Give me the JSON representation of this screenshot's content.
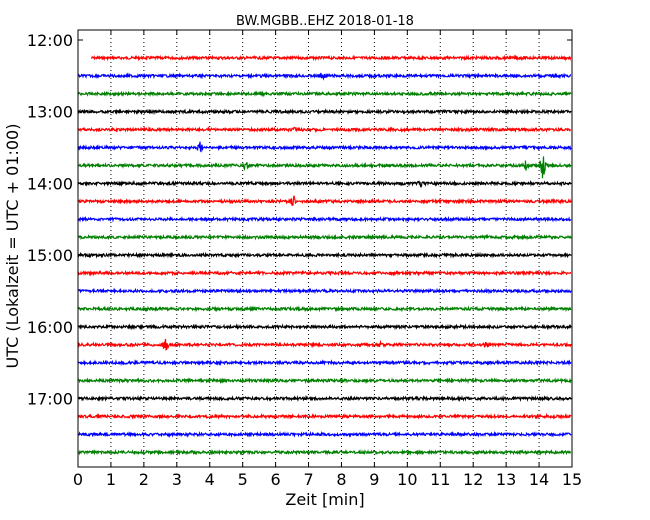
{
  "chart_data": {
    "type": "line",
    "title": "BW.MGBB..EHZ 2018-01-18",
    "xlabel": "Zeit  [min]",
    "ylabel": "UTC (Lokalzeit = UTC + 01:00)",
    "xlim": [
      0,
      15
    ],
    "x_ticks": [
      "0",
      "1",
      "2",
      "3",
      "4",
      "5",
      "6",
      "7",
      "8",
      "9",
      "10",
      "11",
      "12",
      "13",
      "14",
      "15"
    ],
    "y_ticks": [
      "12:00",
      "13:00",
      "14:00",
      "15:00",
      "16:00",
      "17:00"
    ],
    "grid": "vertical dotted",
    "colors": [
      "#ff0000",
      "#0000ff",
      "#008000",
      "#000000"
    ],
    "traces": [
      {
        "time": "12:15",
        "color": "#ff0000",
        "x_start": 0.4,
        "events": []
      },
      {
        "time": "12:30",
        "color": "#0000ff",
        "x_start": 0,
        "events": [
          {
            "x": 7.4,
            "amp": 3
          }
        ]
      },
      {
        "time": "12:45",
        "color": "#008000",
        "x_start": 0,
        "events": []
      },
      {
        "time": "13:00",
        "color": "#000000",
        "x_start": 0,
        "events": []
      },
      {
        "time": "13:15",
        "color": "#ff0000",
        "x_start": 0,
        "events": [
          {
            "x": 6.6,
            "amp": 2
          }
        ]
      },
      {
        "time": "13:30",
        "color": "#0000ff",
        "x_start": 0,
        "events": [
          {
            "x": 3.7,
            "amp": 5
          }
        ]
      },
      {
        "time": "13:45",
        "color": "#008000",
        "x_start": 0,
        "events": [
          {
            "x": 5.1,
            "amp": 4
          },
          {
            "x": 13.6,
            "amp": 5
          },
          {
            "x": 14.1,
            "amp": 16
          }
        ]
      },
      {
        "time": "14:00",
        "color": "#000000",
        "x_start": 0,
        "events": [
          {
            "x": 10.4,
            "amp": 3
          }
        ]
      },
      {
        "time": "14:15",
        "color": "#ff0000",
        "x_start": 0,
        "events": [
          {
            "x": 6.55,
            "amp": 5
          }
        ]
      },
      {
        "time": "14:30",
        "color": "#0000ff",
        "x_start": 0,
        "events": []
      },
      {
        "time": "14:45",
        "color": "#008000",
        "x_start": 0,
        "events": []
      },
      {
        "time": "15:00",
        "color": "#000000",
        "x_start": 0,
        "events": []
      },
      {
        "time": "15:15",
        "color": "#ff0000",
        "x_start": 0,
        "events": []
      },
      {
        "time": "15:30",
        "color": "#0000ff",
        "x_start": 0,
        "events": []
      },
      {
        "time": "15:45",
        "color": "#008000",
        "x_start": 0,
        "events": []
      },
      {
        "time": "16:00",
        "color": "#000000",
        "x_start": 0,
        "events": []
      },
      {
        "time": "16:15",
        "color": "#ff0000",
        "x_start": 0,
        "events": [
          {
            "x": 2.65,
            "amp": 6
          },
          {
            "x": 9.2,
            "amp": 2
          },
          {
            "x": 12.4,
            "amp": 2
          }
        ]
      },
      {
        "time": "16:30",
        "color": "#0000ff",
        "x_start": 0,
        "events": []
      },
      {
        "time": "16:45",
        "color": "#008000",
        "x_start": 0,
        "events": []
      },
      {
        "time": "17:00",
        "color": "#000000",
        "x_start": 0,
        "events": []
      },
      {
        "time": "17:15",
        "color": "#ff0000",
        "x_start": 0,
        "events": []
      },
      {
        "time": "17:30",
        "color": "#0000ff",
        "x_start": 0,
        "events": []
      },
      {
        "time": "17:45",
        "color": "#008000",
        "x_start": 0,
        "events": []
      }
    ]
  }
}
